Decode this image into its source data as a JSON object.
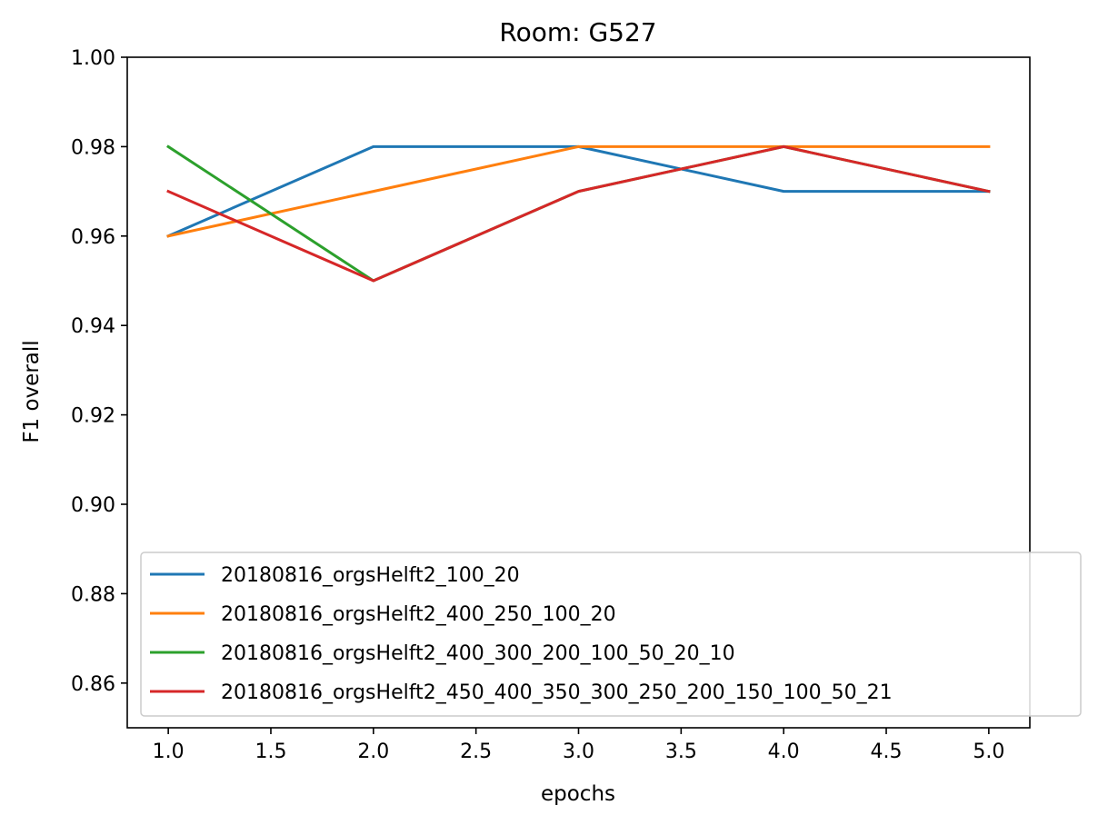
{
  "chart_data": {
    "type": "line",
    "title": "Room: G527",
    "xlabel": "epochs",
    "ylabel": "F1 overall",
    "xlim": [
      0.8,
      5.2
    ],
    "ylim": [
      0.85,
      1.0
    ],
    "xticks": [
      1.0,
      1.5,
      2.0,
      2.5,
      3.0,
      3.5,
      4.0,
      4.5,
      5.0
    ],
    "xtick_labels": [
      "1.0",
      "1.5",
      "2.0",
      "2.5",
      "3.0",
      "3.5",
      "4.0",
      "4.5",
      "5.0"
    ],
    "yticks": [
      0.86,
      0.88,
      0.9,
      0.92,
      0.94,
      0.96,
      0.98,
      1.0
    ],
    "ytick_labels": [
      "0.86",
      "0.88",
      "0.90",
      "0.92",
      "0.94",
      "0.96",
      "0.98",
      "1.00"
    ],
    "grid": false,
    "legend_position": "lower-right",
    "series": [
      {
        "name": "20180816_orgsHelft2_100_20",
        "color": "#1f77b4",
        "x": [
          1,
          2,
          3,
          4,
          5
        ],
        "y": [
          0.96,
          0.98,
          0.98,
          0.97,
          0.97
        ]
      },
      {
        "name": "20180816_orgsHelft2_400_250_100_20",
        "color": "#ff7f0e",
        "x": [
          1,
          2,
          3,
          4,
          5
        ],
        "y": [
          0.96,
          0.97,
          0.98,
          0.98,
          0.98
        ]
      },
      {
        "name": "20180816_orgsHelft2_400_300_200_100_50_20_10",
        "color": "#2ca02c",
        "x": [
          1,
          2,
          3,
          4,
          5
        ],
        "y": [
          0.98,
          0.95,
          0.97,
          0.98,
          0.97
        ]
      },
      {
        "name": "20180816_orgsHelft2_450_400_350_300_250_200_150_100_50_21",
        "color": "#d62728",
        "x": [
          1,
          2,
          3,
          4,
          5
        ],
        "y": [
          0.97,
          0.95,
          0.97,
          0.98,
          0.97
        ]
      }
    ]
  }
}
